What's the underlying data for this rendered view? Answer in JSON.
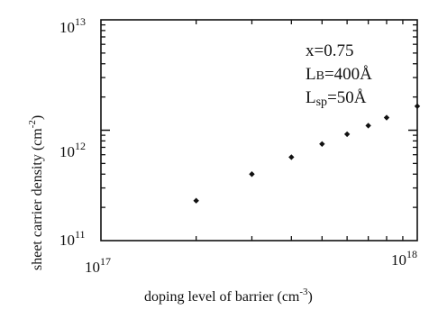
{
  "chart_data": {
    "type": "scatter",
    "xlabel": "doping level of barrier (cm",
    "xlabel_sup": "-3",
    "xlabel_close": ")",
    "ylabel": "sheet carrier density (cm",
    "ylabel_sup": "-2",
    "ylabel_close": ")",
    "x_scale": "log",
    "y_scale": "log",
    "xlim": [
      1e+17,
      1e+18
    ],
    "ylim": [
      100000000000.0,
      10000000000000.0
    ],
    "grid": false,
    "x_ticks": [
      {
        "value": 1e+17,
        "base": "10",
        "exp": "17"
      },
      {
        "value": 1e+18,
        "base": "10",
        "exp": "18"
      }
    ],
    "y_ticks": [
      {
        "value": 100000000000.0,
        "base": "10",
        "exp": "11"
      },
      {
        "value": 1000000000000.0,
        "base": "10",
        "exp": "12"
      },
      {
        "value": 10000000000000.0,
        "base": "10",
        "exp": "13"
      }
    ],
    "points": [
      {
        "x": 2e+17,
        "y": 230000000000.0
      },
      {
        "x": 3e+17,
        "y": 400000000000.0
      },
      {
        "x": 4e+17,
        "y": 570000000000.0
      },
      {
        "x": 5e+17,
        "y": 750000000000.0
      },
      {
        "x": 6e+17,
        "y": 920000000000.0
      },
      {
        "x": 7e+17,
        "y": 1100000000000.0
      },
      {
        "x": 8e+17,
        "y": 1300000000000.0
      },
      {
        "x": 1e+18,
        "y": 1650000000000.0
      }
    ],
    "annotations": {
      "x_value": "x=0.75",
      "lb_main": "L",
      "lb_sub": "B",
      "lb_value": "=400Å",
      "lsp_main": "L",
      "lsp_sub": "sp",
      "lsp_value": "=50Å"
    }
  }
}
